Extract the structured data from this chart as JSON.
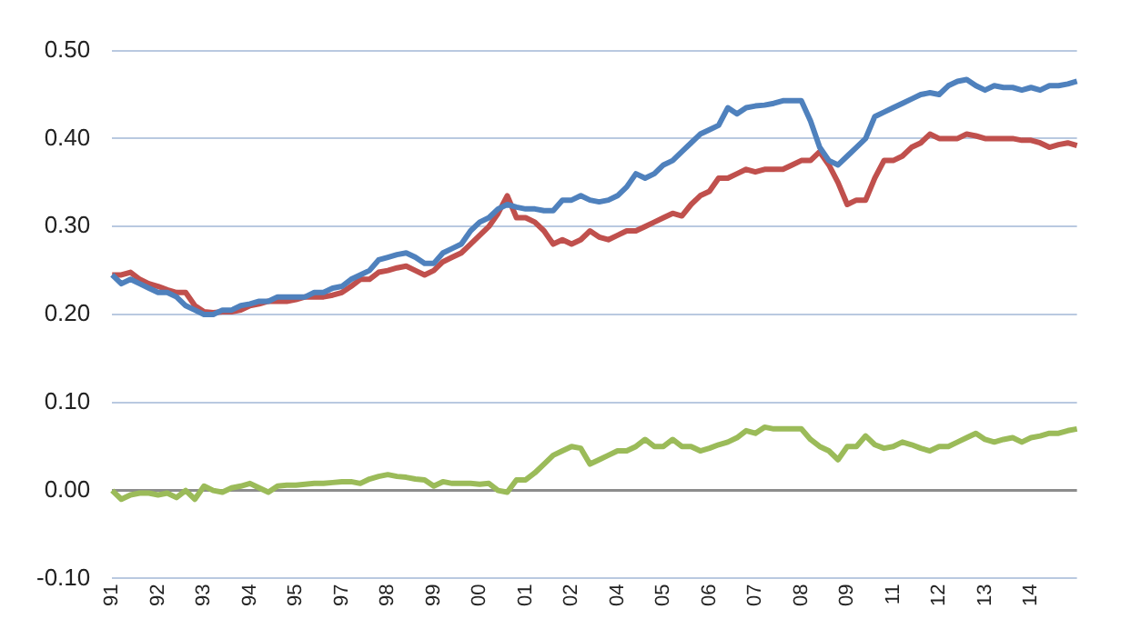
{
  "chart_data": {
    "type": "line",
    "categories": [
      "91",
      null,
      null,
      null,
      null,
      "92",
      null,
      null,
      null,
      null,
      "93",
      null,
      null,
      null,
      null,
      "94",
      null,
      null,
      null,
      null,
      "95",
      null,
      null,
      null,
      null,
      "97",
      null,
      null,
      null,
      null,
      "98",
      null,
      null,
      null,
      null,
      "99",
      null,
      null,
      null,
      null,
      "00",
      null,
      null,
      null,
      null,
      "01",
      null,
      null,
      null,
      null,
      "02",
      null,
      null,
      null,
      null,
      "04",
      null,
      null,
      null,
      null,
      "05",
      null,
      null,
      null,
      null,
      "06",
      null,
      null,
      null,
      null,
      "07",
      null,
      null,
      null,
      null,
      "08",
      null,
      null,
      null,
      null,
      "09",
      null,
      null,
      null,
      null,
      "11",
      null,
      null,
      null,
      null,
      "12",
      null,
      null,
      null,
      null,
      "13",
      null,
      null,
      null,
      null,
      "14",
      null,
      null,
      null,
      null,
      null
    ],
    "series": [
      {
        "color": "#4f81bd",
        "values": [
          0.245,
          0.235,
          0.24,
          0.235,
          0.23,
          0.225,
          0.225,
          0.22,
          0.21,
          0.205,
          0.2,
          0.2,
          0.205,
          0.205,
          0.21,
          0.212,
          0.215,
          0.215,
          0.22,
          0.22,
          0.22,
          0.22,
          0.225,
          0.225,
          0.23,
          0.232,
          0.24,
          0.245,
          0.25,
          0.262,
          0.265,
          0.268,
          0.27,
          0.265,
          0.258,
          0.258,
          0.27,
          0.275,
          0.28,
          0.295,
          0.305,
          0.31,
          0.32,
          0.325,
          0.322,
          0.32,
          0.32,
          0.318,
          0.318,
          0.33,
          0.33,
          0.335,
          0.33,
          0.328,
          0.33,
          0.335,
          0.345,
          0.36,
          0.355,
          0.36,
          0.37,
          0.375,
          0.385,
          0.395,
          0.405,
          0.41,
          0.415,
          0.435,
          0.428,
          0.435,
          0.437,
          0.438,
          0.44,
          0.443,
          0.443,
          0.443,
          0.42,
          0.39,
          0.375,
          0.37,
          0.38,
          0.39,
          0.4,
          0.425,
          0.43,
          0.435,
          0.44,
          0.445,
          0.45,
          0.452,
          0.45,
          0.46,
          0.465,
          0.467,
          0.46,
          0.455,
          0.46,
          0.458,
          0.458,
          0.455,
          0.458,
          0.455,
          0.46,
          0.46,
          0.462,
          0.465
        ]
      },
      {
        "color": "#c0504d",
        "values": [
          0.245,
          0.245,
          0.248,
          0.24,
          0.235,
          0.232,
          0.228,
          0.225,
          0.225,
          0.21,
          0.203,
          0.202,
          0.203,
          0.203,
          0.205,
          0.21,
          0.212,
          0.215,
          0.215,
          0.215,
          0.217,
          0.22,
          0.22,
          0.22,
          0.222,
          0.225,
          0.232,
          0.24,
          0.24,
          0.248,
          0.25,
          0.253,
          0.255,
          0.25,
          0.245,
          0.25,
          0.26,
          0.265,
          0.27,
          0.28,
          0.29,
          0.3,
          0.315,
          0.335,
          0.31,
          0.31,
          0.305,
          0.295,
          0.28,
          0.285,
          0.28,
          0.285,
          0.295,
          0.288,
          0.285,
          0.29,
          0.295,
          0.295,
          0.3,
          0.305,
          0.31,
          0.315,
          0.312,
          0.325,
          0.335,
          0.34,
          0.355,
          0.355,
          0.36,
          0.365,
          0.362,
          0.365,
          0.365,
          0.365,
          0.37,
          0.375,
          0.375,
          0.385,
          0.37,
          0.35,
          0.325,
          0.33,
          0.33,
          0.355,
          0.375,
          0.375,
          0.38,
          0.39,
          0.395,
          0.405,
          0.4,
          0.4,
          0.4,
          0.405,
          0.403,
          0.4,
          0.4,
          0.4,
          0.4,
          0.398,
          0.398,
          0.395,
          0.39,
          0.393,
          0.395,
          0.392
        ]
      },
      {
        "color": "#9bbb59",
        "values": [
          0,
          -0.01,
          -0.005,
          -0.003,
          -0.003,
          -0.005,
          -0.003,
          -0.008,
          0,
          -0.01,
          0.005,
          0,
          -0.002,
          0.003,
          0.005,
          0.008,
          0.003,
          -0.002,
          0.005,
          0.006,
          0.006,
          0.007,
          0.008,
          0.008,
          0.009,
          0.01,
          0.01,
          0.008,
          0.013,
          0.016,
          0.018,
          0.016,
          0.015,
          0.013,
          0.012,
          0.005,
          0.01,
          0.008,
          0.008,
          0.008,
          0.007,
          0.008,
          0,
          -0.002,
          0.012,
          0.012,
          0.02,
          0.03,
          0.04,
          0.045,
          0.05,
          0.048,
          0.03,
          0.035,
          0.04,
          0.045,
          0.045,
          0.05,
          0.058,
          0.05,
          0.05,
          0.058,
          0.05,
          0.05,
          0.045,
          0.048,
          0.052,
          0.055,
          0.06,
          0.068,
          0.065,
          0.072,
          0.07,
          0.07,
          0.07,
          0.07,
          0.058,
          0.05,
          0.045,
          0.035,
          0.05,
          0.05,
          0.062,
          0.052,
          0.048,
          0.05,
          0.055,
          0.052,
          0.048,
          0.045,
          0.05,
          0.05,
          0.055,
          0.06,
          0.065,
          0.058,
          0.055,
          0.058,
          0.06,
          0.055,
          0.06,
          0.062,
          0.065,
          0.065,
          0.068,
          0.07
        ]
      }
    ],
    "ylim": [
      -0.1,
      0.5
    ],
    "yticks": [
      {
        "value": -0.1,
        "label": "-0.10"
      },
      {
        "value": 0,
        "label": "0.00"
      },
      {
        "value": 0.1,
        "label": "0.10"
      },
      {
        "value": 0.2,
        "label": "0.20"
      },
      {
        "value": 0.3,
        "label": "0.30"
      },
      {
        "value": 0.4,
        "label": "0.40"
      },
      {
        "value": 0.5,
        "label": "0.50"
      }
    ],
    "grid": "y"
  }
}
